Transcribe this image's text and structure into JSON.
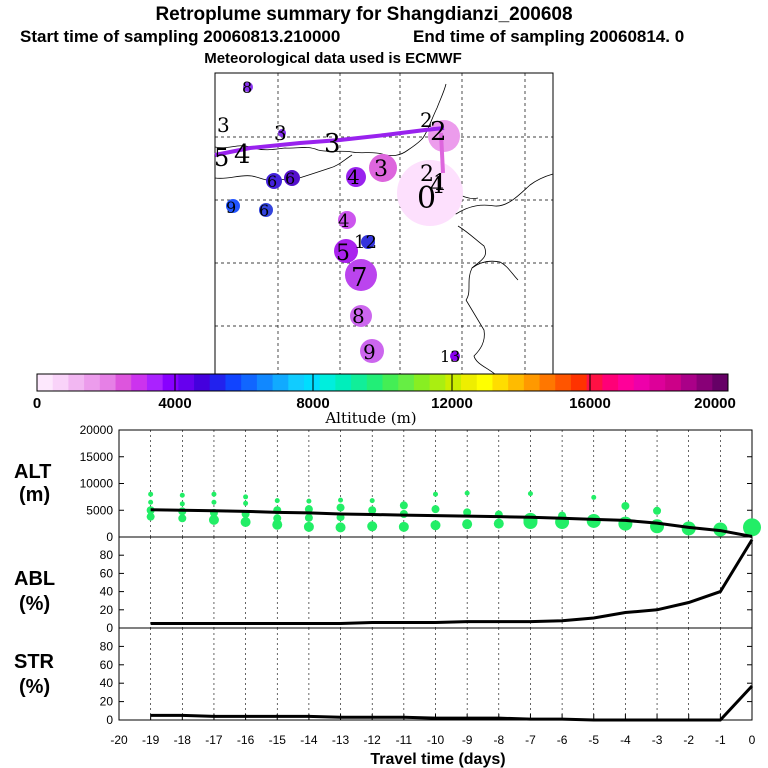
{
  "title": "Retroplume summary for Shangdianzi_200608",
  "start_time": "Start time of sampling 20060813.210000",
  "end_time": "End time of sampling 20060814.     0",
  "met_data": "Meteorological data used is ECMWF",
  "colorbar": {
    "label": "Altitude (m)",
    "ticks": [
      "0",
      "4000",
      "8000",
      "12000",
      "16000",
      "20000"
    ],
    "colors": [
      "#fde8fd",
      "#f9d3f9",
      "#f2b7f2",
      "#ec9cec",
      "#e680e6",
      "#dd55dd",
      "#cc33ee",
      "#aa22ff",
      "#8800ff",
      "#6600ee",
      "#4400dd",
      "#2222ee",
      "#1144ff",
      "#1166ff",
      "#1188ff",
      "#11aaff",
      "#11ccff",
      "#00ddff",
      "#00eedd",
      "#00eebb",
      "#11ee99",
      "#22ee77",
      "#44ee55",
      "#66ee44",
      "#88ee22",
      "#aaee11",
      "#ccee00",
      "#eeee00",
      "#ffff00",
      "#ffdd00",
      "#ffbb00",
      "#ff9900",
      "#ff7700",
      "#ff5500",
      "#ff3300",
      "#ff1144",
      "#ff0077",
      "#ff0099",
      "#ee00aa",
      "#dd0099",
      "#cc0088",
      "#aa0088",
      "#880077",
      "#660066"
    ]
  },
  "map": {
    "plume_points": [
      {
        "n": "0",
        "color": "#fde0fd"
      },
      {
        "n": "1",
        "color": "#ec9cec"
      },
      {
        "n": "2",
        "color": "#dd66dd"
      },
      {
        "n": "3",
        "color": "#bb44ee"
      },
      {
        "n": "4",
        "color": "#9922ee"
      },
      {
        "n": "5",
        "color": "#8800ee"
      },
      {
        "n": "6",
        "color": "#4422dd"
      },
      {
        "n": "7",
        "color": "#5511cc"
      },
      {
        "n": "8",
        "color": "#8833ee"
      },
      {
        "n": "9",
        "color": "#2255ff"
      },
      {
        "n": "10",
        "color": "#3333dd"
      }
    ],
    "labels": [
      {
        "text": "3"
      },
      {
        "text": "5"
      },
      {
        "text": "4"
      },
      {
        "text": "3"
      },
      {
        "text": "3"
      },
      {
        "text": "2"
      },
      {
        "text": "2"
      },
      {
        "text": "2"
      },
      {
        "text": "1"
      },
      {
        "text": "0"
      },
      {
        "text": "4"
      },
      {
        "text": "4"
      },
      {
        "text": "8"
      },
      {
        "text": "3"
      },
      {
        "text": "6"
      },
      {
        "text": "6"
      },
      {
        "text": "9"
      },
      {
        "text": "6"
      },
      {
        "text": "12"
      },
      {
        "text": "5"
      },
      {
        "text": "7"
      },
      {
        "text": "8"
      },
      {
        "text": "9"
      },
      {
        "text": "13"
      },
      {
        "text": "4"
      }
    ]
  },
  "chart_data": [
    {
      "type": "line",
      "panel": "ALT",
      "ylabel": [
        "ALT",
        "(m)"
      ],
      "ylim": [
        0,
        20000
      ],
      "yticks": [
        "0",
        "5000",
        "10000",
        "15000",
        "20000"
      ],
      "x": [
        -19,
        -18,
        -17,
        -16,
        -15,
        -14,
        -13,
        -12,
        -11,
        -10,
        -9,
        -8,
        -7,
        -6,
        -5,
        -4,
        -3,
        -2,
        -1,
        0
      ],
      "values": [
        5100,
        5000,
        4900,
        4800,
        4600,
        4500,
        4300,
        4200,
        4100,
        4000,
        3900,
        3800,
        3700,
        3500,
        3300,
        3100,
        2600,
        1800,
        1200,
        100
      ],
      "scatter": [
        {
          "x": -19,
          "ys": [
            8000,
            6500,
            5000,
            3800
          ]
        },
        {
          "x": -18,
          "ys": [
            7800,
            6200,
            4800,
            3500
          ]
        },
        {
          "x": -17,
          "ys": [
            8000,
            6500,
            4500,
            3200
          ]
        },
        {
          "x": -16,
          "ys": [
            7500,
            6300,
            4300,
            2800
          ]
        },
        {
          "x": -15,
          "ys": [
            6800,
            5000,
            3500,
            2300
          ]
        },
        {
          "x": -14,
          "ys": [
            6700,
            5200,
            3600,
            1900
          ]
        },
        {
          "x": -13,
          "ys": [
            6900,
            5500,
            3700,
            1800
          ]
        },
        {
          "x": -12,
          "ys": [
            6800,
            5000,
            2000
          ]
        },
        {
          "x": -11,
          "ys": [
            5900,
            4300,
            1900
          ]
        },
        {
          "x": -10,
          "ys": [
            8000,
            5200,
            2200
          ]
        },
        {
          "x": -9,
          "ys": [
            8200,
            4600,
            2400
          ]
        },
        {
          "x": -8,
          "ys": [
            4200,
            2500
          ]
        },
        {
          "x": -7,
          "ys": [
            8100,
            3200,
            2800
          ]
        },
        {
          "x": -6,
          "ys": [
            4000,
            2800
          ]
        },
        {
          "x": -5,
          "ys": [
            7400,
            3000
          ]
        },
        {
          "x": -4,
          "ys": [
            5800,
            2500
          ]
        },
        {
          "x": -3,
          "ys": [
            4900,
            2000
          ]
        },
        {
          "x": -2,
          "ys": [
            1600
          ]
        },
        {
          "x": -1,
          "ys": [
            1400
          ]
        },
        {
          "x": 0,
          "ys": [
            1800
          ]
        }
      ],
      "scatter_color": "#22ee66"
    },
    {
      "type": "line",
      "panel": "ABL",
      "ylabel": [
        "ABL",
        "(%)"
      ],
      "ylim": [
        0,
        100
      ],
      "yticks": [
        "0",
        "20",
        "40",
        "60",
        "80"
      ],
      "x": [
        -19,
        -18,
        -17,
        -16,
        -15,
        -14,
        -13,
        -12,
        -11,
        -10,
        -9,
        -8,
        -7,
        -6,
        -5,
        -4,
        -3,
        -2,
        -1,
        0
      ],
      "values": [
        5,
        5,
        5,
        5,
        5,
        5,
        5,
        6,
        6,
        6,
        7,
        7,
        7,
        8,
        11,
        17,
        20,
        28,
        40,
        97
      ]
    },
    {
      "type": "line",
      "panel": "STR",
      "ylabel": [
        "STR",
        "(%)"
      ],
      "ylim": [
        0,
        100
      ],
      "yticks": [
        "0",
        "20",
        "40",
        "60",
        "80"
      ],
      "x": [
        -19,
        -18,
        -17,
        -16,
        -15,
        -14,
        -13,
        -12,
        -11,
        -10,
        -9,
        -8,
        -7,
        -6,
        -5,
        -4,
        -3,
        -2,
        -1,
        0
      ],
      "values": [
        5,
        5,
        4,
        4,
        4,
        4,
        3,
        3,
        3,
        2,
        2,
        2,
        1,
        1,
        0,
        0,
        0,
        0,
        0,
        37
      ]
    }
  ],
  "xaxis": {
    "label": "Travel time (days)",
    "ticks": [
      "-20",
      "-19",
      "-18",
      "-17",
      "-16",
      "-15",
      "-14",
      "-13",
      "-12",
      "-11",
      "-10",
      "-9",
      "-8",
      "-7",
      "-6",
      "-5",
      "-4",
      "-3",
      "-2",
      "-1",
      "0"
    ]
  }
}
